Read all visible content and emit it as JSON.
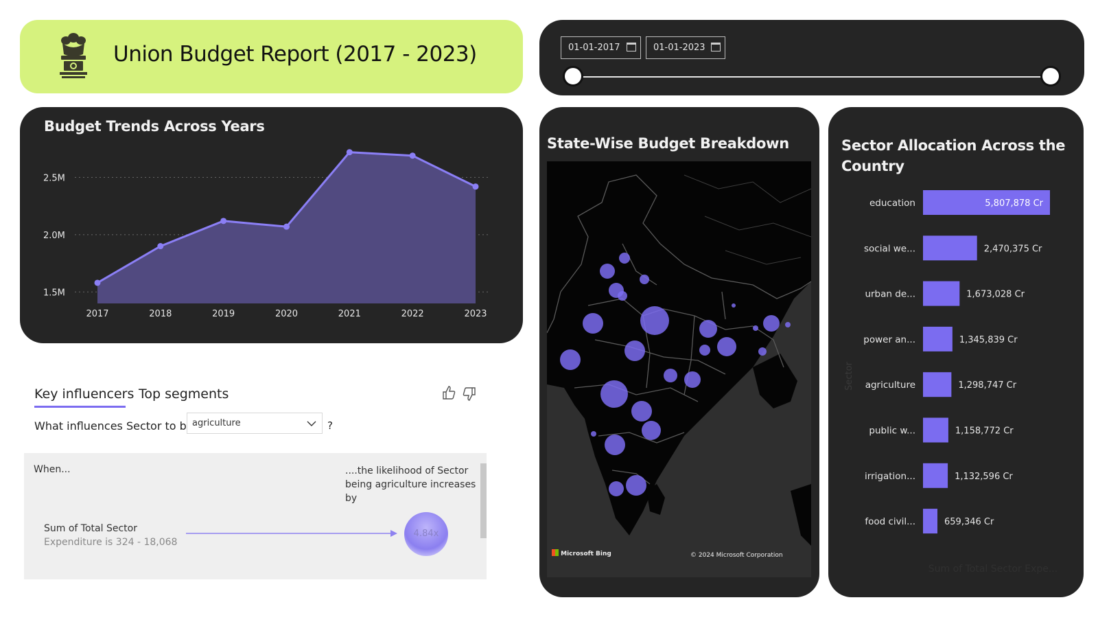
{
  "header": {
    "title": "Union Budget Report (2017 - 2023)"
  },
  "date_range": {
    "start": "01-01-2017",
    "end": "01-01-2023"
  },
  "trend": {
    "title": "Budget Trends Across Years",
    "y_ticks": [
      "2.5M",
      "2.0M",
      "1.5M"
    ],
    "x_ticks": [
      "2017",
      "2018",
      "2019",
      "2020",
      "2021",
      "2022",
      "2023"
    ]
  },
  "map": {
    "title": "State-Wise Budget Breakdown",
    "brand": "Microsoft Bing",
    "copyright": "© 2024 Microsoft Corporation"
  },
  "sector": {
    "title_line1": "Sector Allocation Across the",
    "title_line2": "Country",
    "rows": [
      {
        "label": "education",
        "value": "5,807,878 Cr"
      },
      {
        "label": "social we...",
        "value": "2,470,375 Cr"
      },
      {
        "label": "urban de...",
        "value": "1,673,028 Cr"
      },
      {
        "label": "power an...",
        "value": "1,345,839 Cr"
      },
      {
        "label": "agriculture",
        "value": "1,298,747 Cr"
      },
      {
        "label": "public w...",
        "value": "1,158,772 Cr"
      },
      {
        "label": "irrigation...",
        "value": "1,132,596 Cr"
      },
      {
        "label": "food civil...",
        "value": "659,346 Cr"
      }
    ],
    "y_axis_label": "Sector",
    "x_axis_label": "Sum of Total Sector Expe..."
  },
  "key_influencers": {
    "tab_active": "Key influencers",
    "tab_other": "Top segments",
    "question": "What influences Sector to be",
    "selected_value": "agriculture",
    "help": "?",
    "when_label": "When...",
    "likelihood_line1": "....the likelihood of Sector",
    "likelihood_line2": "being agriculture increases",
    "likelihood_line3": "by",
    "factor_line1": "Sum of Total Sector",
    "factor_line2": "Expenditure is 324 - 18,068",
    "multiplier": "4.84x"
  },
  "colors": {
    "accent": "#7b6cf0",
    "header_bg": "#d6f27e",
    "card_bg": "#252525"
  },
  "chart_data": [
    {
      "type": "area",
      "title": "Budget Trends Across Years",
      "x": [
        "2017",
        "2018",
        "2019",
        "2020",
        "2021",
        "2022",
        "2023"
      ],
      "series": [
        {
          "values": [
            1580000,
            1900000,
            2120000,
            2070000,
            2720000,
            2690000,
            2420000
          ]
        }
      ],
      "ylim": [
        1400000,
        2850000
      ],
      "grid": true
    },
    {
      "type": "bar",
      "title": "Sector Allocation Across the Country",
      "categories": [
        "education",
        "social we...",
        "urban de...",
        "power an...",
        "agriculture",
        "public w...",
        "irrigation...",
        "food civil..."
      ],
      "values": [
        5807878,
        2470375,
        1673028,
        1345839,
        1298747,
        1158772,
        1132596,
        659346
      ],
      "ylabel": "Sector",
      "xlabel": "Sum of Total Sector Expe..."
    }
  ]
}
